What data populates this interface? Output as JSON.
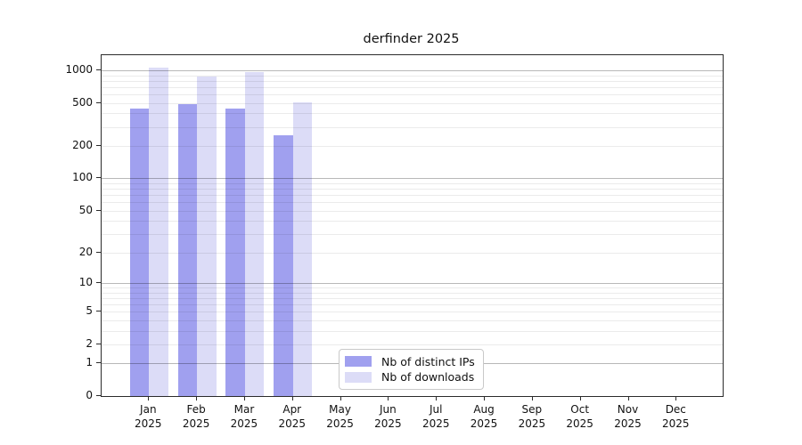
{
  "title": "derfinder 2025",
  "chart_data": {
    "type": "bar",
    "title": "derfinder 2025",
    "x_categories": [
      "Jan",
      "Feb",
      "Mar",
      "Apr",
      "May",
      "Jun",
      "Jul",
      "Aug",
      "Sep",
      "Oct",
      "Nov",
      "Dec"
    ],
    "x_sublabel": "2025",
    "y_scale": "log10(1+x)",
    "y_ticks": [
      0,
      1,
      2,
      5,
      10,
      20,
      50,
      100,
      200,
      500,
      1000
    ],
    "ylim": [
      0,
      1380
    ],
    "grid": "horizontal, log decades dark + log minors faint, drawn over bars",
    "legend_position": "inside-bottom-center",
    "series": [
      {
        "name": "Nb of distinct IPs",
        "color": "#a0a0ef",
        "values": [
          440,
          490,
          445,
          250,
          null,
          null,
          null,
          null,
          null,
          null,
          null,
          null
        ]
      },
      {
        "name": "Nb of downloads",
        "color": "#dcdcf7",
        "values": [
          1050,
          870,
          965,
          505,
          null,
          null,
          null,
          null,
          null,
          null,
          null,
          null
        ]
      }
    ]
  }
}
